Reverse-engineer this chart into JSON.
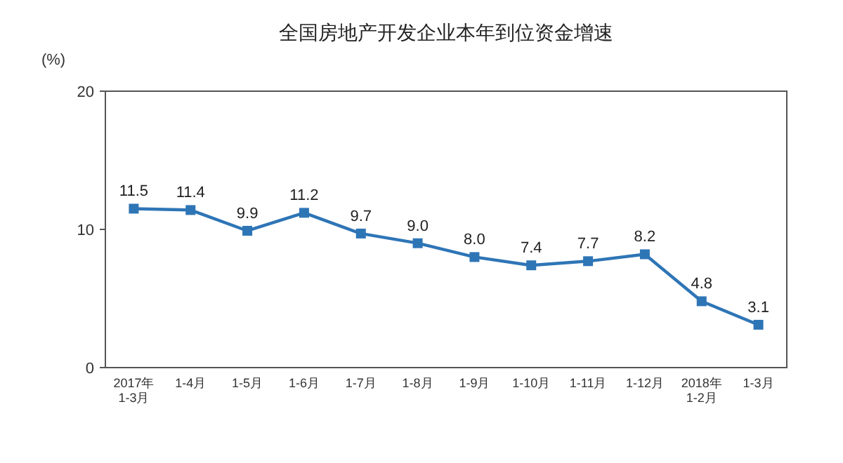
{
  "chart_data": {
    "type": "line",
    "title": "全国房地产开发企业本年到位资金增速",
    "ylabel": "(%)",
    "categories": [
      "2017年\n1-3月",
      "1-4月",
      "1-5月",
      "1-6月",
      "1-7月",
      "1-8月",
      "1-9月",
      "1-10月",
      "1-11月",
      "1-12月",
      "2018年\n1-2月",
      "1-3月"
    ],
    "series": [
      {
        "color": "#2e75b6",
        "values": [
          11.5,
          11.4,
          9.9,
          11.2,
          9.7,
          9.0,
          8.0,
          7.4,
          7.7,
          8.2,
          4.8,
          3.1
        ],
        "value_labels": [
          "11.5",
          "11.4",
          "9.9",
          "11.2",
          "9.7",
          "9.0",
          "8.0",
          "7.4",
          "7.7",
          "8.2",
          "4.8",
          "3.1"
        ]
      }
    ],
    "ylim": [
      0,
      20
    ],
    "yticks": [
      0,
      10,
      20
    ],
    "marker": "square",
    "grid": false
  }
}
